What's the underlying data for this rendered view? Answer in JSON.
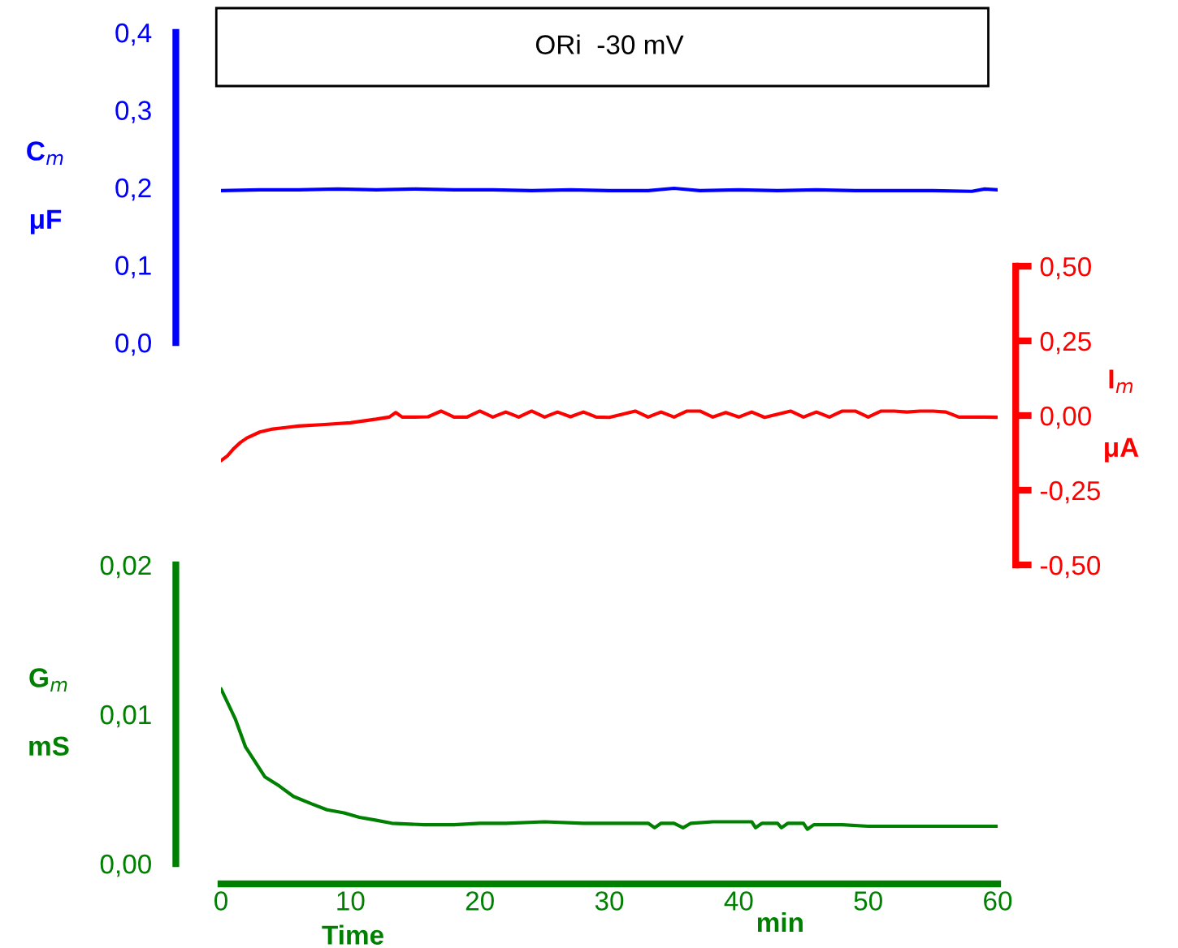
{
  "chart_data": [
    {
      "type": "line",
      "title": "ORi  -30 mV",
      "ylabel": "C$_{m}$\nμF",
      "xlim": [
        0,
        60
      ],
      "ylim": [
        0,
        0.4
      ],
      "yticks": [
        {
          "value": 0,
          "label": "0,0"
        },
        {
          "value": 0.1,
          "label": "0,1"
        },
        {
          "value": 0.2,
          "label": "0,2"
        },
        {
          "value": 0.3,
          "label": "0,3"
        },
        {
          "value": 0.4,
          "label": "0,4"
        }
      ],
      "tick_labels": "y",
      "x": [
        0,
        3,
        6,
        9,
        12,
        15,
        18,
        21,
        24,
        27,
        30,
        33,
        35,
        37,
        40,
        43,
        46,
        49,
        52,
        55,
        58,
        59,
        60
      ],
      "series": [
        {
          "color": "#0000ff",
          "values": [
            0.196,
            0.197,
            0.197,
            0.198,
            0.197,
            0.198,
            0.197,
            0.197,
            0.196,
            0.197,
            0.196,
            0.196,
            0.199,
            0.196,
            0.197,
            0.196,
            0.197,
            0.196,
            0.196,
            0.196,
            0.195,
            0.198,
            0.197
          ]
        }
      ]
    },
    {
      "type": "line",
      "ylabel": "I$_{m}$\nμA",
      "xlim": [
        0,
        60
      ],
      "ylim": [
        -0.5,
        0.5
      ],
      "yticks": [
        {
          "value": -0.5,
          "label": "-0,50"
        },
        {
          "value": -0.25,
          "label": "-0,25"
        },
        {
          "value": 0,
          "label": "0,00"
        },
        {
          "value": 0.25,
          "label": "0,25"
        },
        {
          "value": 0.5,
          "label": "0,50"
        }
      ],
      "tick_labels": "y",
      "x": [
        0,
        0.5,
        1,
        1.5,
        2,
        3,
        4,
        5,
        6,
        8,
        10,
        12,
        13,
        13.5,
        14,
        15,
        16,
        17,
        18,
        19,
        20,
        21,
        22,
        23,
        24,
        25,
        26,
        27,
        28,
        29,
        30,
        32,
        33,
        34,
        35,
        36,
        37,
        38,
        39,
        40,
        41,
        42,
        44,
        45,
        46,
        47,
        48,
        49,
        50,
        51,
        52,
        53,
        54,
        55,
        56,
        57,
        58,
        59,
        60
      ],
      "series": [
        {
          "color": "#ff0000",
          "values": [
            -0.151,
            -0.135,
            -0.11,
            -0.09,
            -0.075,
            -0.055,
            -0.045,
            -0.04,
            -0.035,
            -0.03,
            -0.024,
            -0.012,
            -0.005,
            0.01,
            -0.005,
            -0.005,
            -0.004,
            0.015,
            -0.005,
            -0.005,
            0.015,
            -0.005,
            0.012,
            -0.005,
            0.015,
            -0.005,
            0.012,
            -0.004,
            0.012,
            -0.005,
            -0.006,
            0.015,
            -0.005,
            0.012,
            -0.005,
            0.015,
            0.015,
            -0.005,
            0.01,
            -0.005,
            0.012,
            -0.006,
            0.015,
            -0.005,
            0.012,
            -0.005,
            0.015,
            0.015,
            -0.005,
            0.015,
            0.015,
            0.012,
            0.015,
            0.015,
            0.012,
            -0.005,
            -0.005,
            -0.005,
            -0.006
          ]
        }
      ]
    },
    {
      "type": "line",
      "ylabel": "G$_{m}$\nmS",
      "xlabel": "Time",
      "annotations": [
        "min"
      ],
      "xlim": [
        0,
        60
      ],
      "xticks": [
        0,
        10,
        20,
        30,
        40,
        50,
        60
      ],
      "ylim": [
        0,
        0.02
      ],
      "yticks": [
        {
          "value": 0,
          "label": "0,00"
        },
        {
          "value": 0.01,
          "label": "0,01"
        },
        {
          "value": 0.02,
          "label": "0,02"
        }
      ],
      "x": [
        0,
        0.5,
        1.1,
        1.9,
        2.5,
        3.4,
        4.5,
        5.6,
        7,
        8.2,
        9.5,
        10.7,
        12,
        13.2,
        15.7,
        18,
        20,
        22,
        25,
        28,
        30,
        33,
        33.5,
        34,
        35,
        35.7,
        36.3,
        38,
        40,
        41,
        41.3,
        41.8,
        43,
        43.3,
        43.8,
        45,
        45.3,
        45.8,
        48,
        50,
        52,
        55,
        58,
        60
      ],
      "series": [
        {
          "color": "#008000",
          "values": [
            0.0117,
            0.0108,
            0.0097,
            0.0078,
            0.007,
            0.0058,
            0.0052,
            0.0045,
            0.004,
            0.0036,
            0.0034,
            0.0031,
            0.0029,
            0.0027,
            0.0026,
            0.0026,
            0.0027,
            0.0027,
            0.0028,
            0.0027,
            0.0027,
            0.0027,
            0.0024,
            0.0027,
            0.0027,
            0.0024,
            0.0027,
            0.0028,
            0.0028,
            0.0028,
            0.0024,
            0.0027,
            0.0027,
            0.0024,
            0.0027,
            0.0027,
            0.0023,
            0.0026,
            0.0026,
            0.0025,
            0.0025,
            0.0025,
            0.0025,
            0.0025
          ]
        }
      ]
    }
  ]
}
